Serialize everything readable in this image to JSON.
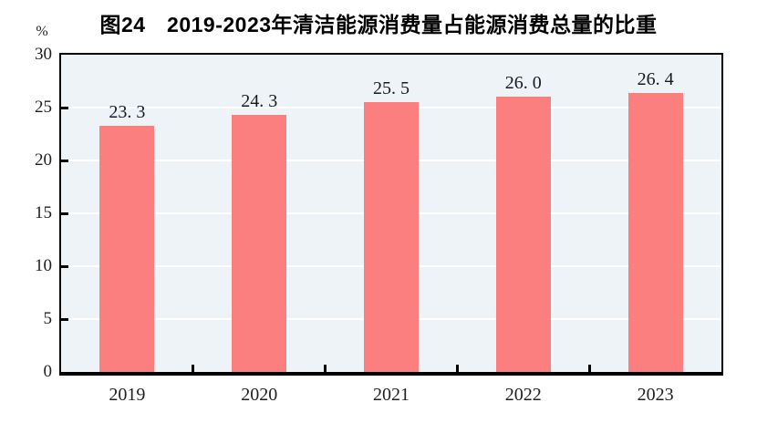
{
  "title": "图24　2019-2023年清洁能源消费量占能源消费总量的比重",
  "unit_label": "%",
  "colors": {
    "bar": "#FC7F7F",
    "plot_background": "#EDF3F7",
    "gridline": "#FFFFFF",
    "axis": "#000000",
    "text": "#1F1F1F",
    "title_text": "#000000"
  },
  "chart_data": {
    "type": "bar",
    "title": "图24　2019-2023年清洁能源消费量占能源消费总量的比重",
    "categories": [
      "2019",
      "2020",
      "2021",
      "2022",
      "2023"
    ],
    "values": [
      23.3,
      24.3,
      25.5,
      26.0,
      26.4
    ],
    "value_labels": [
      "23. 3",
      "24. 3",
      "25. 5",
      "26. 0",
      "26. 4"
    ],
    "xlabel": "",
    "ylabel": "%",
    "ylim": [
      0,
      30
    ],
    "yticks": [
      0,
      5,
      10,
      15,
      20,
      25,
      30
    ],
    "grid": "horizontal white gridlines at each y tick",
    "legend_position": "none"
  }
}
